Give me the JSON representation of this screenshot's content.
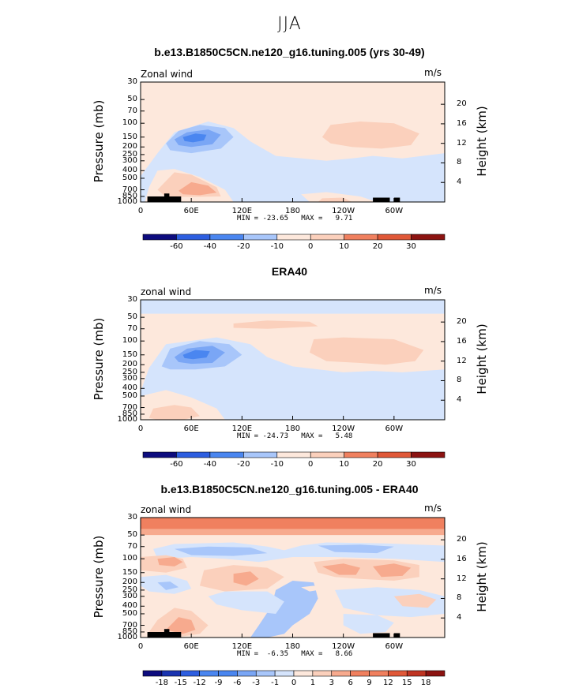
{
  "figure": {
    "main_title": "JJA"
  },
  "panels": [
    {
      "title": "b.e13.B1850C5CN.ne120_g16.tuning.005 (yrs 30-49)",
      "label": "Zonal wind",
      "units": "m/s",
      "ylabel": "Pressure (mb)",
      "ylabel_right": "Height (km)",
      "yticks": [
        "30",
        "50",
        "70",
        "100",
        "150",
        "200",
        "250",
        "300",
        "400",
        "500",
        "700",
        "850",
        "1000"
      ],
      "yticks_right": [
        "20",
        "16",
        "12",
        "8",
        "4"
      ],
      "xticks": [
        "0",
        "60E",
        "120E",
        "180",
        "120W",
        "60W"
      ],
      "minmax": "MIN = -23.65   MAX =   9.71",
      "colorbar_ticks": [
        "-60",
        "-40",
        "-20",
        "-10",
        "0",
        "10",
        "20",
        "30"
      ]
    },
    {
      "title": "ERA40",
      "label": "zonal wind",
      "units": "m/s",
      "ylabel": "Pressure (mb)",
      "ylabel_right": "Height (km)",
      "yticks": [
        "30",
        "50",
        "70",
        "100",
        "150",
        "200",
        "250",
        "300",
        "400",
        "500",
        "700",
        "850",
        "1000"
      ],
      "yticks_right": [
        "20",
        "16",
        "12",
        "8",
        "4"
      ],
      "xticks": [
        "0",
        "60E",
        "120E",
        "180",
        "120W",
        "60W"
      ],
      "minmax": "MIN = -24.73   MAX =   5.48",
      "colorbar_ticks": [
        "-60",
        "-40",
        "-20",
        "-10",
        "0",
        "10",
        "20",
        "30"
      ]
    },
    {
      "title": "b.e13.B1850C5CN.ne120_g16.tuning.005 - ERA40",
      "label": "zonal wind",
      "units": "m/s",
      "ylabel": "Pressure (mb)",
      "ylabel_right": "Height (km)",
      "yticks": [
        "30",
        "50",
        "70",
        "100",
        "150",
        "200",
        "250",
        "300",
        "400",
        "500",
        "700",
        "850",
        "1000"
      ],
      "yticks_right": [
        "20",
        "16",
        "12",
        "8",
        "4"
      ],
      "xticks": [
        "0",
        "60E",
        "120E",
        "180",
        "120W",
        "60W"
      ],
      "minmax": "MIN =  -6.35   MAX =   8.66",
      "colorbar_ticks": [
        "-18",
        "-15",
        "-12",
        "-9",
        "-6",
        "-3",
        "-1",
        "0",
        "1",
        "3",
        "6",
        "9",
        "12",
        "15",
        "18"
      ]
    }
  ],
  "colors": {
    "scale": [
      "#0d0c7e",
      "#1a34b0",
      "#2d5ee0",
      "#4a86f0",
      "#7aa6f5",
      "#a8c6fa",
      "#d5e4fc",
      "#fde8dc",
      "#fbd0bc",
      "#f7aa8e",
      "#f0805f",
      "#e05838",
      "#bf3422",
      "#8c1311"
    ],
    "terrain": "#000000"
  },
  "chart_data": [
    {
      "type": "heatmap",
      "title": "b.e13.B1850C5CN.ne120_g16.tuning.005 (yrs 30-49)",
      "variable": "Zonal wind",
      "units": "m/s",
      "xlabel": "",
      "ylabel": "Pressure (mb)",
      "y2label": "Height (km)",
      "x_ticks": [
        "0",
        "60E",
        "120E",
        "180",
        "120W",
        "60W"
      ],
      "y_ticks_mb": [
        30,
        50,
        70,
        100,
        150,
        200,
        250,
        300,
        400,
        500,
        700,
        850,
        1000
      ],
      "y2_ticks_km": [
        20,
        16,
        12,
        8,
        4
      ],
      "y_scale": "log",
      "min": -23.65,
      "max": 9.71,
      "colorbar_levels": [
        -60,
        -40,
        -20,
        -10,
        0,
        10,
        20,
        30
      ]
    },
    {
      "type": "heatmap",
      "title": "ERA40",
      "variable": "zonal wind",
      "units": "m/s",
      "xlabel": "",
      "ylabel": "Pressure (mb)",
      "y2label": "Height (km)",
      "x_ticks": [
        "0",
        "60E",
        "120E",
        "180",
        "120W",
        "60W"
      ],
      "y_ticks_mb": [
        30,
        50,
        70,
        100,
        150,
        200,
        250,
        300,
        400,
        500,
        700,
        850,
        1000
      ],
      "y2_ticks_km": [
        20,
        16,
        12,
        8,
        4
      ],
      "y_scale": "log",
      "min": -24.73,
      "max": 5.48,
      "colorbar_levels": [
        -60,
        -40,
        -20,
        -10,
        0,
        10,
        20,
        30
      ]
    },
    {
      "type": "heatmap",
      "title": "b.e13.B1850C5CN.ne120_g16.tuning.005 - ERA40",
      "variable": "zonal wind",
      "units": "m/s",
      "xlabel": "",
      "ylabel": "Pressure (mb)",
      "y2label": "Height (km)",
      "x_ticks": [
        "0",
        "60E",
        "120E",
        "180",
        "120W",
        "60W"
      ],
      "y_ticks_mb": [
        30,
        50,
        70,
        100,
        150,
        200,
        250,
        300,
        400,
        500,
        700,
        850,
        1000
      ],
      "y2_ticks_km": [
        20,
        16,
        12,
        8,
        4
      ],
      "y_scale": "log",
      "min": -6.35,
      "max": 8.66,
      "colorbar_levels": [
        -18,
        -15,
        -12,
        -9,
        -6,
        -3,
        -1,
        0,
        1,
        3,
        6,
        9,
        12,
        15,
        18
      ]
    }
  ]
}
